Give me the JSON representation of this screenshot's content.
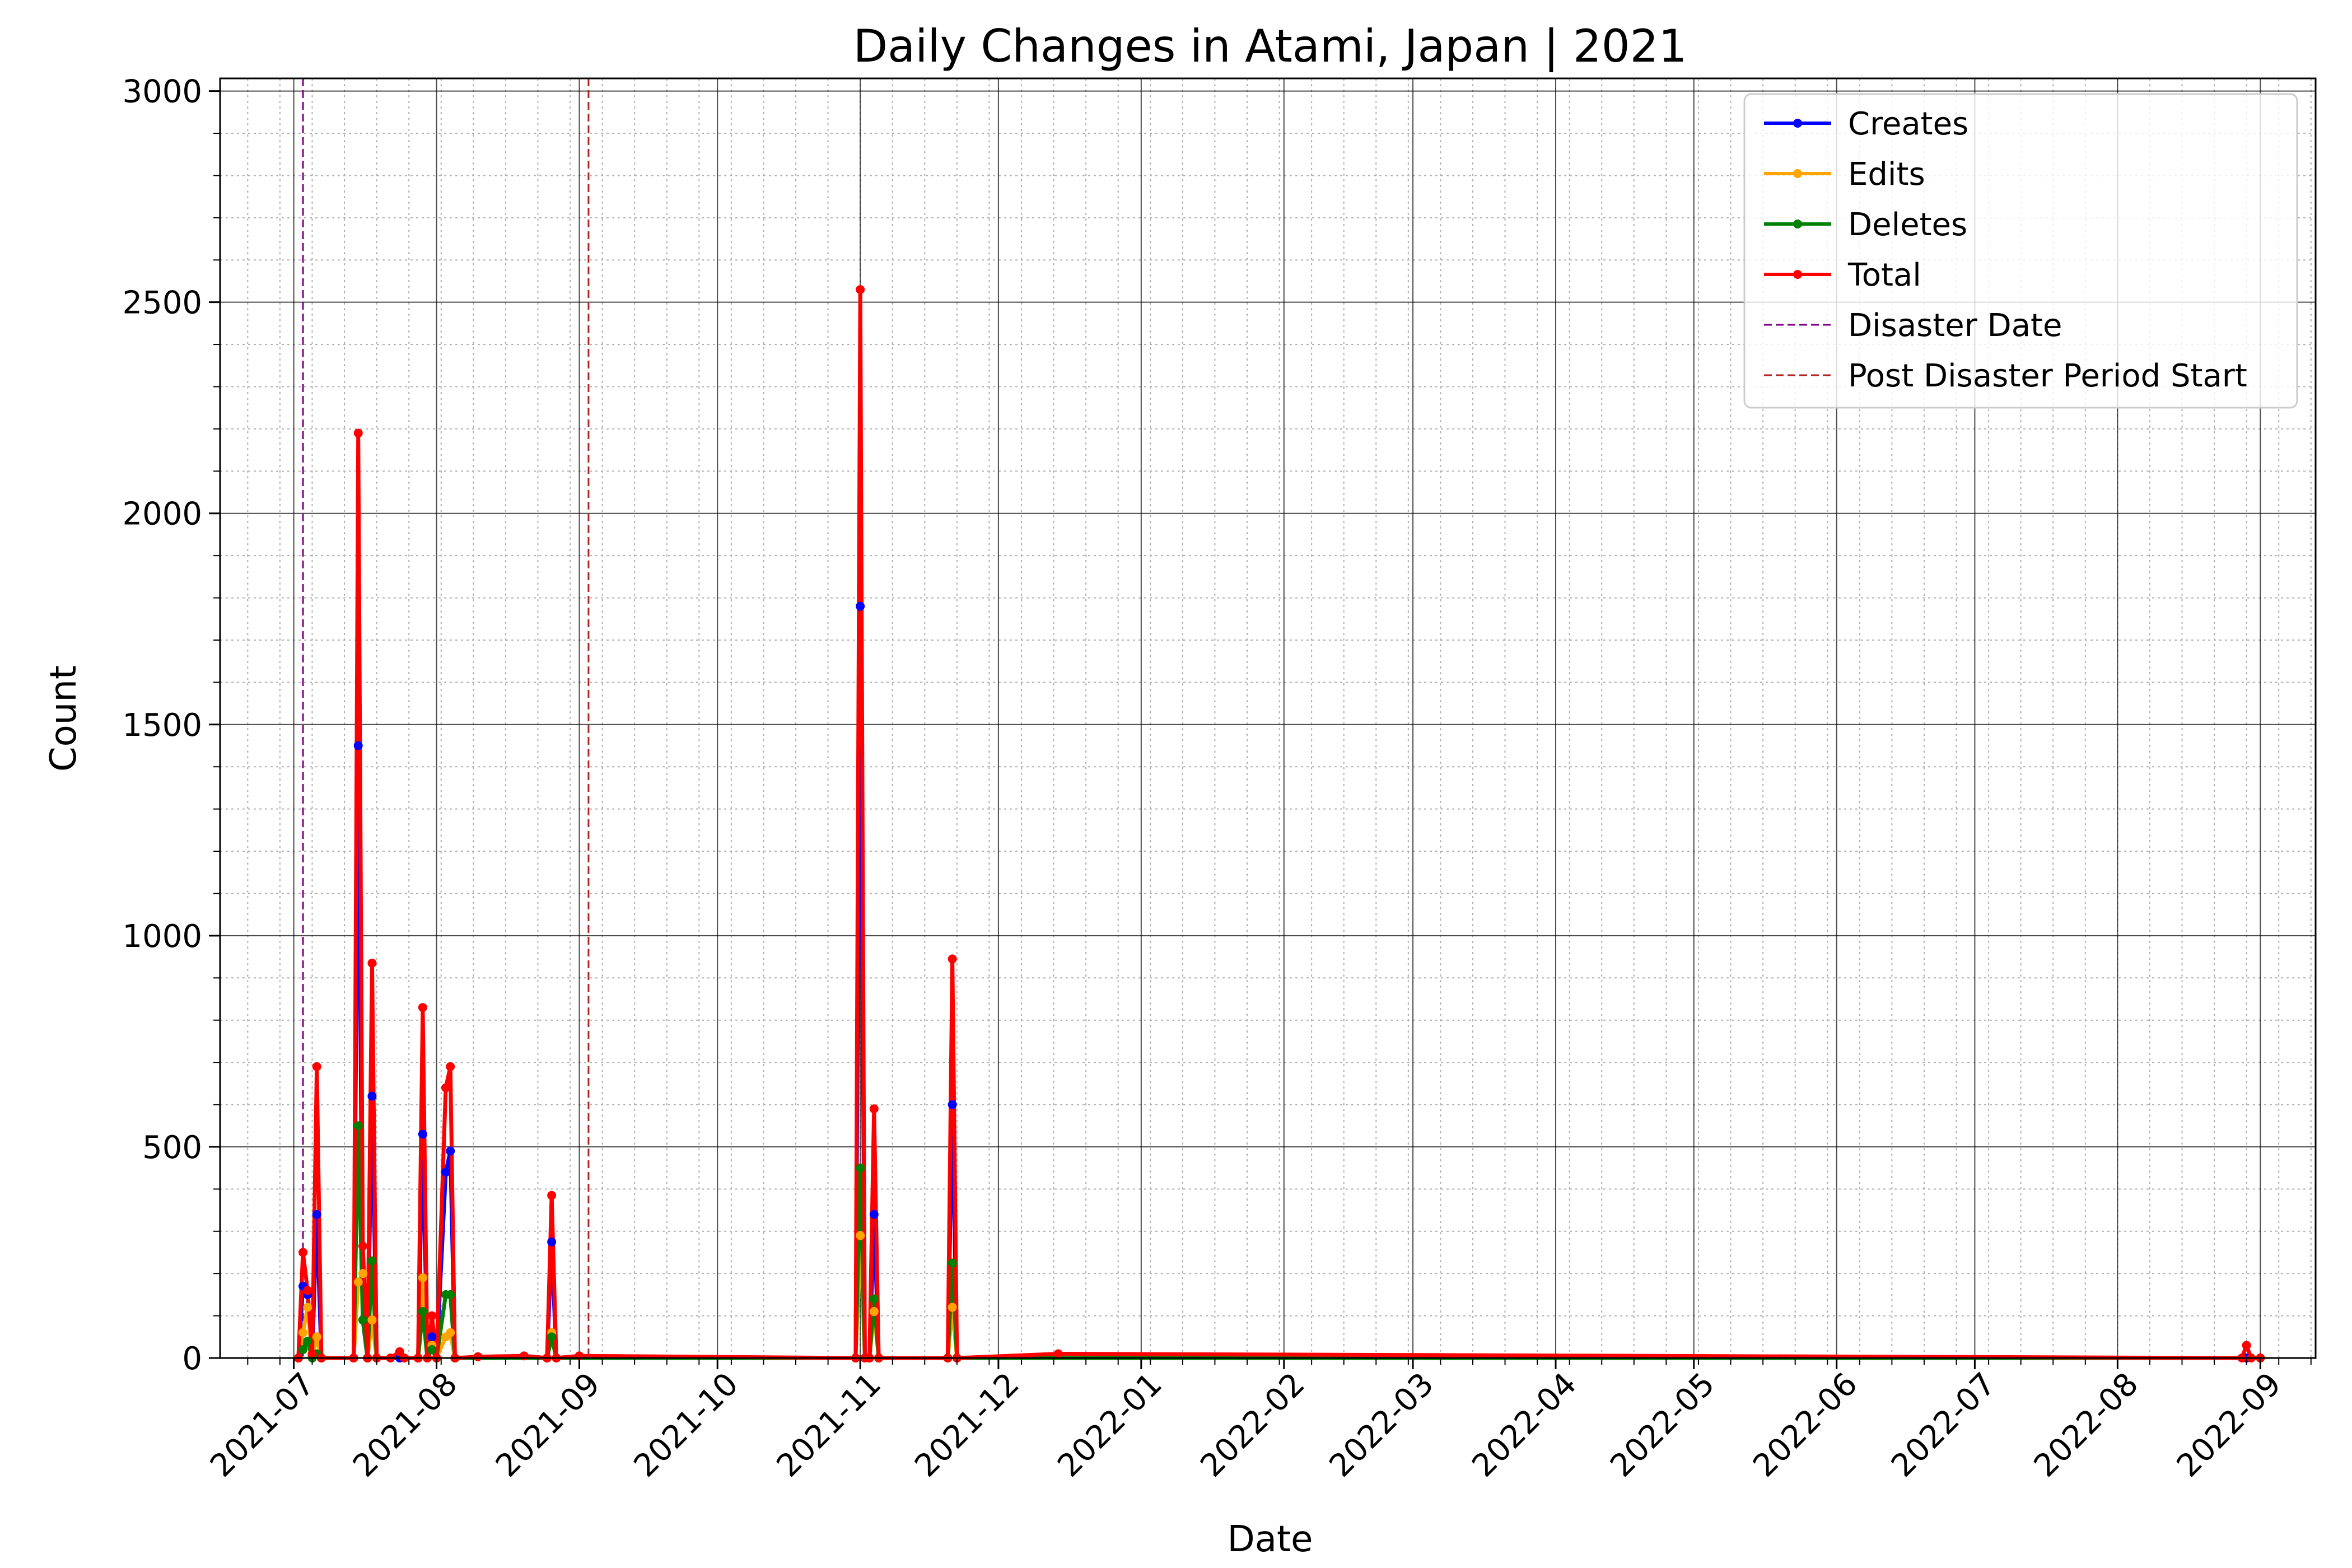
{
  "chart_data": {
    "type": "line",
    "title": "Daily Changes in Atami, Japan | 2021",
    "xlabel": "Date",
    "ylabel": "Count",
    "ylim": [
      0,
      3030
    ],
    "xlim": [
      "2021-06-15",
      "2022-09-13"
    ],
    "x_ticks": [
      "2021-07",
      "2021-08",
      "2021-09",
      "2021-10",
      "2021-11",
      "2021-12",
      "2022-01",
      "2022-02",
      "2022-03",
      "2022-04",
      "2022-05",
      "2022-06",
      "2022-07",
      "2022-08",
      "2022-09"
    ],
    "y_ticks": [
      0,
      500,
      1000,
      1500,
      2000,
      2500,
      3000
    ],
    "grid": true,
    "legend_position": "top-right",
    "vlines": [
      {
        "name": "Disaster Date",
        "date": "2021-07-03",
        "color": "#800080"
      },
      {
        "name": "Post Disaster Period Start",
        "date": "2021-09-03",
        "color": "#b22222"
      }
    ],
    "series": [
      {
        "name": "Creates",
        "color": "#0000ff",
        "points": [
          [
            "2021-07-02",
            0
          ],
          [
            "2021-07-03",
            170
          ],
          [
            "2021-07-04",
            150
          ],
          [
            "2021-07-05",
            5
          ],
          [
            "2021-07-06",
            340
          ],
          [
            "2021-07-07",
            0
          ],
          [
            "2021-07-14",
            0
          ],
          [
            "2021-07-15",
            1450
          ],
          [
            "2021-07-16",
            90
          ],
          [
            "2021-07-17",
            0
          ],
          [
            "2021-07-18",
            620
          ],
          [
            "2021-07-19",
            0
          ],
          [
            "2021-07-24",
            0
          ],
          [
            "2021-07-28",
            0
          ],
          [
            "2021-07-29",
            530
          ],
          [
            "2021-07-30",
            0
          ],
          [
            "2021-07-31",
            50
          ],
          [
            "2021-08-01",
            0
          ],
          [
            "2021-08-03",
            440
          ],
          [
            "2021-08-04",
            490
          ],
          [
            "2021-08-05",
            0
          ],
          [
            "2021-08-25",
            0
          ],
          [
            "2021-08-26",
            275
          ],
          [
            "2021-08-27",
            0
          ],
          [
            "2021-10-31",
            0
          ],
          [
            "2021-11-01",
            1780
          ],
          [
            "2021-11-02",
            0
          ],
          [
            "2021-11-03",
            0
          ],
          [
            "2021-11-04",
            340
          ],
          [
            "2021-11-05",
            0
          ],
          [
            "2021-11-20",
            0
          ],
          [
            "2021-11-21",
            600
          ],
          [
            "2021-11-22",
            0
          ],
          [
            "2022-08-29",
            0
          ],
          [
            "2022-09-01",
            0
          ]
        ]
      },
      {
        "name": "Edits",
        "color": "#ffa500",
        "points": [
          [
            "2021-07-02",
            0
          ],
          [
            "2021-07-03",
            60
          ],
          [
            "2021-07-04",
            120
          ],
          [
            "2021-07-05",
            0
          ],
          [
            "2021-07-06",
            50
          ],
          [
            "2021-07-07",
            0
          ],
          [
            "2021-07-14",
            0
          ],
          [
            "2021-07-15",
            180
          ],
          [
            "2021-07-16",
            200
          ],
          [
            "2021-07-17",
            0
          ],
          [
            "2021-07-18",
            90
          ],
          [
            "2021-07-19",
            0
          ],
          [
            "2021-07-28",
            0
          ],
          [
            "2021-07-29",
            190
          ],
          [
            "2021-07-30",
            0
          ],
          [
            "2021-07-31",
            30
          ],
          [
            "2021-08-01",
            0
          ],
          [
            "2021-08-03",
            50
          ],
          [
            "2021-08-04",
            60
          ],
          [
            "2021-08-05",
            0
          ],
          [
            "2021-08-25",
            0
          ],
          [
            "2021-08-26",
            60
          ],
          [
            "2021-08-27",
            0
          ],
          [
            "2021-10-31",
            0
          ],
          [
            "2021-11-01",
            290
          ],
          [
            "2021-11-02",
            0
          ],
          [
            "2021-11-03",
            0
          ],
          [
            "2021-11-04",
            110
          ],
          [
            "2021-11-05",
            0
          ],
          [
            "2021-11-20",
            0
          ],
          [
            "2021-11-21",
            120
          ],
          [
            "2021-11-22",
            0
          ],
          [
            "2022-09-01",
            0
          ]
        ]
      },
      {
        "name": "Deletes",
        "color": "#008000",
        "points": [
          [
            "2021-07-02",
            0
          ],
          [
            "2021-07-03",
            20
          ],
          [
            "2021-07-04",
            40
          ],
          [
            "2021-07-05",
            0
          ],
          [
            "2021-07-06",
            10
          ],
          [
            "2021-07-07",
            0
          ],
          [
            "2021-07-14",
            0
          ],
          [
            "2021-07-15",
            550
          ],
          [
            "2021-07-16",
            90
          ],
          [
            "2021-07-17",
            0
          ],
          [
            "2021-07-18",
            230
          ],
          [
            "2021-07-19",
            0
          ],
          [
            "2021-07-28",
            0
          ],
          [
            "2021-07-29",
            110
          ],
          [
            "2021-07-30",
            0
          ],
          [
            "2021-07-31",
            20
          ],
          [
            "2021-08-01",
            0
          ],
          [
            "2021-08-03",
            150
          ],
          [
            "2021-08-04",
            150
          ],
          [
            "2021-08-05",
            0
          ],
          [
            "2021-08-25",
            0
          ],
          [
            "2021-08-26",
            50
          ],
          [
            "2021-08-27",
            0
          ],
          [
            "2021-10-31",
            0
          ],
          [
            "2021-11-01",
            450
          ],
          [
            "2021-11-02",
            0
          ],
          [
            "2021-11-03",
            0
          ],
          [
            "2021-11-04",
            140
          ],
          [
            "2021-11-05",
            0
          ],
          [
            "2021-11-20",
            0
          ],
          [
            "2021-11-21",
            225
          ],
          [
            "2021-11-22",
            0
          ],
          [
            "2022-09-01",
            0
          ]
        ]
      },
      {
        "name": "Total",
        "color": "#ff0000",
        "points": [
          [
            "2021-07-02",
            0
          ],
          [
            "2021-07-03",
            250
          ],
          [
            "2021-07-04",
            160
          ],
          [
            "2021-07-05",
            10
          ],
          [
            "2021-07-06",
            690
          ],
          [
            "2021-07-07",
            0
          ],
          [
            "2021-07-14",
            0
          ],
          [
            "2021-07-15",
            2190
          ],
          [
            "2021-07-16",
            265
          ],
          [
            "2021-07-17",
            0
          ],
          [
            "2021-07-18",
            935
          ],
          [
            "2021-07-19",
            0
          ],
          [
            "2021-07-22",
            0
          ],
          [
            "2021-07-24",
            15
          ],
          [
            "2021-07-25",
            0
          ],
          [
            "2021-07-28",
            0
          ],
          [
            "2021-07-29",
            830
          ],
          [
            "2021-07-30",
            0
          ],
          [
            "2021-07-31",
            100
          ],
          [
            "2021-08-01",
            0
          ],
          [
            "2021-08-03",
            640
          ],
          [
            "2021-08-04",
            690
          ],
          [
            "2021-08-05",
            0
          ],
          [
            "2021-08-10",
            3
          ],
          [
            "2021-08-20",
            5
          ],
          [
            "2021-08-25",
            0
          ],
          [
            "2021-08-26",
            385
          ],
          [
            "2021-08-27",
            0
          ],
          [
            "2021-09-01",
            5
          ],
          [
            "2021-10-31",
            0
          ],
          [
            "2021-11-01",
            2530
          ],
          [
            "2021-11-02",
            0
          ],
          [
            "2021-11-03",
            0
          ],
          [
            "2021-11-04",
            590
          ],
          [
            "2021-11-05",
            0
          ],
          [
            "2021-11-20",
            0
          ],
          [
            "2021-11-21",
            945
          ],
          [
            "2021-11-22",
            0
          ],
          [
            "2021-12-14",
            10
          ],
          [
            "2022-08-28",
            0
          ],
          [
            "2022-08-29",
            30
          ],
          [
            "2022-08-30",
            0
          ],
          [
            "2022-09-01",
            0
          ]
        ]
      }
    ]
  }
}
